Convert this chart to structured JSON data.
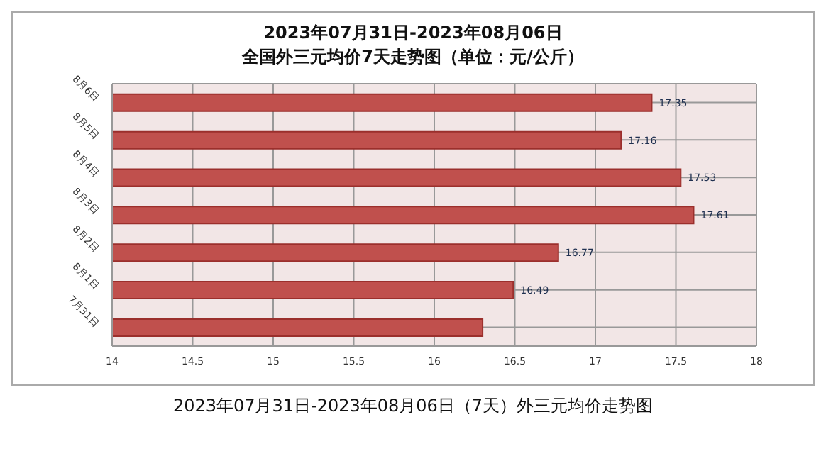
{
  "chart_data": {
    "type": "bar",
    "orientation": "horizontal",
    "title": "2023年07月31日-2023年08月06日",
    "subtitle": "全国外三元均价7天走势图（单位：元/公斤）",
    "categories": [
      "8月6日",
      "8月5日",
      "8月4日",
      "8月3日",
      "8月2日",
      "8月1日",
      "7月31日"
    ],
    "values": [
      17.35,
      17.16,
      17.53,
      17.61,
      16.77,
      16.49,
      16.3
    ],
    "value_labels": [
      "17.35",
      "17.16",
      "17.53",
      "17.61",
      "16.77",
      "16.49",
      null
    ],
    "color": "#c0504d",
    "xlim": [
      14,
      18
    ],
    "xticks": [
      14,
      14.5,
      15,
      15.5,
      16,
      16.5,
      17,
      17.5,
      18
    ],
    "grid": true,
    "annotations": [
      "2023年07月31日-2023年08月06日（7天）外三元均价走势图"
    ]
  }
}
